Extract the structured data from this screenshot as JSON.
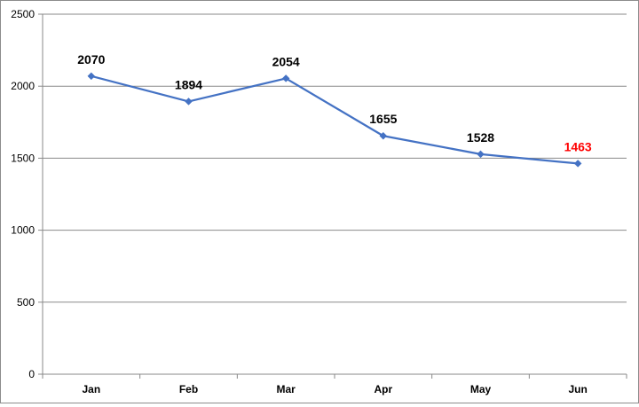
{
  "chart_data": {
    "type": "line",
    "title": "",
    "xlabel": "",
    "ylabel": "",
    "categories": [
      "Jan",
      "Feb",
      "Mar",
      "Apr",
      "May",
      "Jun"
    ],
    "series": [
      {
        "values": [
          2070,
          1894,
          2054,
          1655,
          1528,
          1463
        ],
        "color": "#4472c4",
        "marker": "diamond"
      }
    ],
    "data_labels": [
      "2070",
      "1894",
      "2054",
      "1655",
      "1528",
      "1463"
    ],
    "data_label_colors": [
      "#000000",
      "#000000",
      "#000000",
      "#000000",
      "#000000",
      "#ff0000"
    ],
    "ylim": [
      0,
      2500
    ],
    "yticks": [
      0,
      500,
      1000,
      1500,
      2000,
      2500
    ],
    "ytick_labels": [
      "0",
      "500",
      "1000",
      "1500",
      "2000",
      "2500"
    ],
    "grid": true,
    "legend": "none"
  }
}
